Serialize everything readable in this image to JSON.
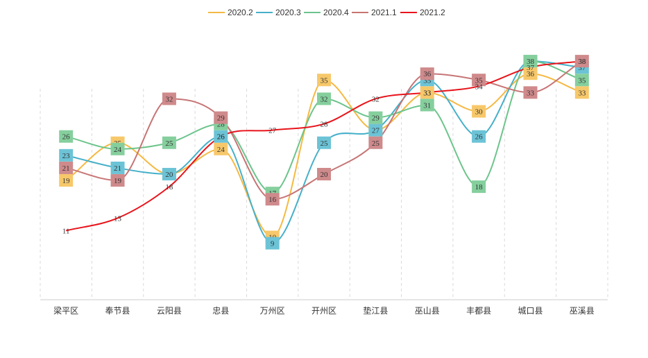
{
  "chart_data": {
    "type": "line",
    "title": "",
    "xlabel": "",
    "ylabel": "",
    "smooth": true,
    "grid": "vertical-dashed",
    "legend_position": "top-center",
    "ylim": [
      0,
      40
    ],
    "categories": [
      "梁平区",
      "奉节县",
      "云阳县",
      "忠县",
      "万州区",
      "开州区",
      "垫江县",
      "巫山县",
      "丰都县",
      "城口县",
      "巫溪县"
    ],
    "series": [
      {
        "name": "2020.2",
        "color": "#f5b942",
        "label_bg": "#f7c86a",
        "values": [
          19,
          25,
          20,
          24,
          10,
          35,
          27,
          33,
          30,
          36,
          33
        ]
      },
      {
        "name": "2020.3",
        "color": "#45b0c9",
        "label_bg": "#6cc3d6",
        "values": [
          23,
          21,
          20,
          26,
          9,
          25,
          27,
          35,
          26,
          38,
          37
        ]
      },
      {
        "name": "2020.4",
        "color": "#6cc48b",
        "label_bg": "#85cf9d",
        "values": [
          26,
          24,
          25,
          28,
          17,
          32,
          29,
          31,
          18,
          38,
          35
        ]
      },
      {
        "name": "2021.1",
        "color": "#c77475",
        "label_bg": "#cf8a8b",
        "values": [
          21,
          19,
          32,
          29,
          16,
          20,
          25,
          36,
          35,
          33,
          38
        ]
      },
      {
        "name": "2021.2",
        "color": "#e8131a",
        "label_bg": "",
        "values": [
          11,
          13,
          18,
          26,
          27,
          28,
          32,
          33,
          34,
          37,
          38
        ]
      }
    ]
  }
}
